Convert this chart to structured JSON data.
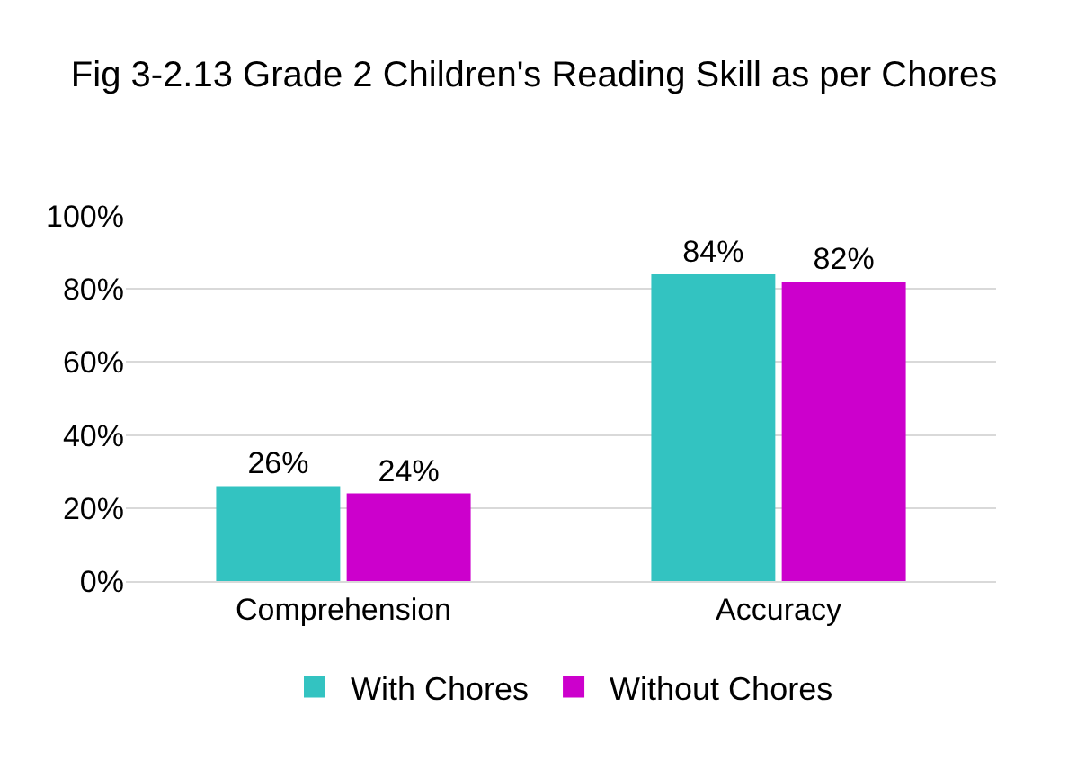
{
  "chart_data": {
    "type": "bar",
    "title": "Fig 3-2.13 Grade 2 Children's Reading Skill as per Chores",
    "categories": [
      "Comprehension",
      "Accuracy"
    ],
    "series": [
      {
        "name": "With Chores",
        "color": "#33c3c1",
        "values": [
          26,
          84
        ],
        "value_labels": [
          "26%",
          "84%"
        ]
      },
      {
        "name": "Without Chores",
        "color": "#cc00cc",
        "values": [
          24,
          82
        ],
        "value_labels": [
          "24%",
          "82%"
        ]
      }
    ],
    "ylim": [
      0,
      100
    ],
    "yticks": [
      {
        "value": 0,
        "label": "0%"
      },
      {
        "value": 20,
        "label": "20%"
      },
      {
        "value": 40,
        "label": "40%"
      },
      {
        "value": 60,
        "label": "60%"
      },
      {
        "value": 80,
        "label": "80%"
      },
      {
        "value": 100,
        "label": "100%"
      }
    ],
    "grid": "y",
    "legend": "bottom"
  }
}
